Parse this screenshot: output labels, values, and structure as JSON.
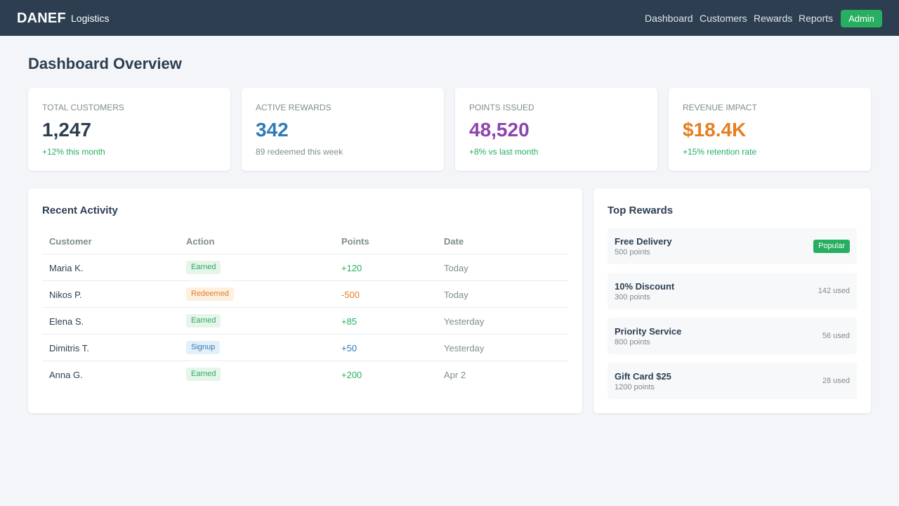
{
  "header": {
    "brand": "DANEF",
    "subtitle": "Logistics",
    "nav": [
      "Dashboard",
      "Customers",
      "Rewards",
      "Reports"
    ],
    "admin_label": "Admin"
  },
  "page": {
    "title": "Dashboard Overview"
  },
  "stats": [
    {
      "label": "TOTAL CUSTOMERS",
      "value": "1,247",
      "sub": "+12% this month",
      "value_color": "#2c3e50",
      "sub_color": "#27ae60"
    },
    {
      "label": "ACTIVE REWARDS",
      "value": "342",
      "sub": "89 redeemed this week",
      "value_color": "#2e7bb8",
      "sub_color": "#7f8c8d"
    },
    {
      "label": "POINTS ISSUED",
      "value": "48,520",
      "sub": "+8% vs last month",
      "value_color": "#8e44ad",
      "sub_color": "#27ae60"
    },
    {
      "label": "REVENUE IMPACT",
      "value": "$18.4K",
      "sub": "+15% retention rate",
      "value_color": "#e67e22",
      "sub_color": "#27ae60"
    }
  ],
  "activity": {
    "title": "Recent Activity",
    "columns": [
      "Customer",
      "Action",
      "Points",
      "Date"
    ],
    "rows": [
      {
        "customer": "Maria K.",
        "action": "Earned",
        "points": "+120",
        "date": "Today"
      },
      {
        "customer": "Nikos P.",
        "action": "Redeemed",
        "points": "-500",
        "date": "Today"
      },
      {
        "customer": "Elena S.",
        "action": "Earned",
        "points": "+85",
        "date": "Yesterday"
      },
      {
        "customer": "Dimitris T.",
        "action": "Signup",
        "points": "+50",
        "date": "Yesterday"
      },
      {
        "customer": "Anna G.",
        "action": "Earned",
        "points": "+200",
        "date": "Apr 2"
      }
    ]
  },
  "rewards": {
    "title": "Top Rewards",
    "items": [
      {
        "name": "Free Delivery",
        "points": "500 points",
        "badge": "Popular"
      },
      {
        "name": "10% Discount",
        "points": "300 points",
        "used": "142 used"
      },
      {
        "name": "Priority Service",
        "points": "800 points",
        "used": "56 used"
      },
      {
        "name": "Gift Card $25",
        "points": "1200 points",
        "used": "28 used"
      }
    ]
  },
  "colors": {
    "header_bg": "#2c3e50",
    "accent_green": "#27ae60",
    "earned_bg": "#e6f4ea",
    "earned_text": "#27ae60",
    "redeemed_bg": "#fdf0e0",
    "redeemed_text": "#e67e22",
    "signup_bg": "#e3f0fa",
    "signup_text": "#2e7bb8"
  }
}
